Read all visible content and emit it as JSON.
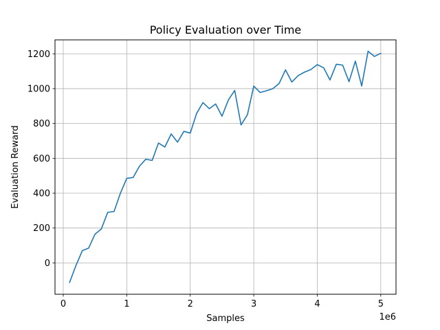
{
  "chart_data": {
    "type": "line",
    "title": "Policy Evaluation over Time",
    "xlabel": "Samples",
    "ylabel": "Evaluation Reward",
    "x_offset_label": "1e6",
    "xlim": [
      -0.13,
      5.24
    ],
    "ylim": [
      -180,
      1280
    ],
    "x_ticks": [
      0,
      1,
      2,
      3,
      4,
      5
    ],
    "x_tick_labels": [
      "0",
      "1",
      "2",
      "3",
      "4",
      "5"
    ],
    "y_ticks": [
      0,
      200,
      400,
      600,
      800,
      1000,
      1200
    ],
    "y_tick_labels": [
      "0",
      "200",
      "400",
      "600",
      "800",
      "1000",
      "1200"
    ],
    "grid": true,
    "series": [
      {
        "color": "#1f77b4",
        "x": [
          0.1,
          0.2,
          0.3,
          0.4,
          0.5,
          0.6,
          0.7,
          0.8,
          0.9,
          1.0,
          1.1,
          1.2,
          1.3,
          1.4,
          1.5,
          1.6,
          1.7,
          1.8,
          1.9,
          2.0,
          2.1,
          2.2,
          2.3,
          2.4,
          2.5,
          2.6,
          2.7,
          2.8,
          2.9,
          3.0,
          3.1,
          3.2,
          3.3,
          3.4,
          3.5,
          3.6,
          3.7,
          3.8,
          3.9,
          4.0,
          4.1,
          4.2,
          4.3,
          4.4,
          4.5,
          4.6,
          4.7,
          4.8,
          4.9,
          5.0
        ],
        "y": [
          -112,
          -15,
          70,
          85,
          165,
          195,
          290,
          295,
          400,
          485,
          490,
          555,
          595,
          588,
          688,
          665,
          740,
          693,
          755,
          745,
          858,
          920,
          885,
          912,
          842,
          935,
          990,
          792,
          850,
          1015,
          978,
          988,
          1000,
          1030,
          1108,
          1038,
          1075,
          1095,
          1110,
          1138,
          1120,
          1050,
          1140,
          1135,
          1040,
          1158,
          1015,
          1215,
          1185,
          1203
        ]
      }
    ]
  }
}
